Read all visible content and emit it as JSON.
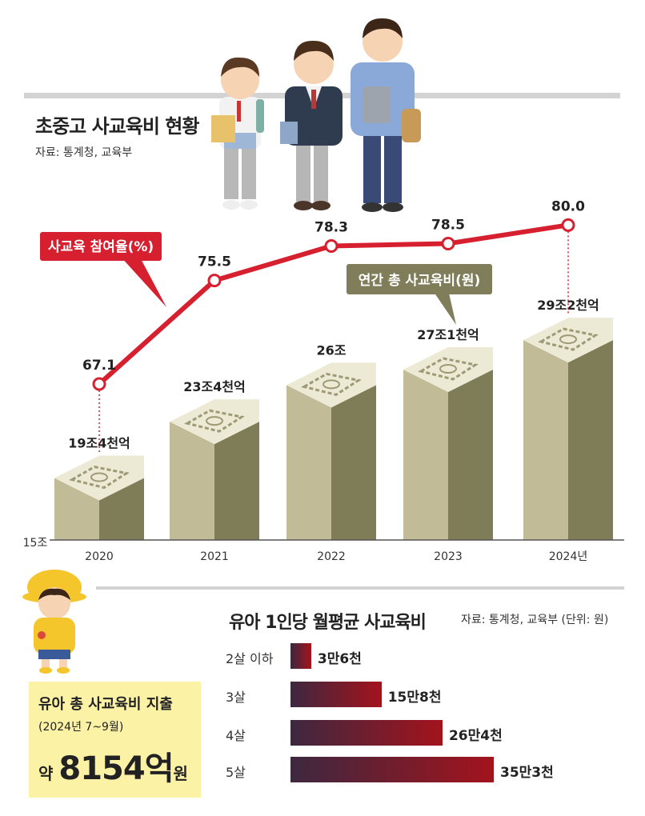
{
  "header": {
    "title": "초중고 사교육비 현황",
    "source": "자료: 통계청, 교육부"
  },
  "chart_data": [
    {
      "type": "bar",
      "title": "초중고 사교육비 현황",
      "categories": [
        "2020",
        "2021",
        "2022",
        "2023",
        "2024년"
      ],
      "series": [
        {
          "name": "연간 총 사교육비(원)",
          "values": [
            19.4,
            23.4,
            26.0,
            27.1,
            29.2
          ],
          "labels": [
            "19조4천억",
            "23조4천억",
            "26조",
            "27조1천억",
            "29조2천억"
          ]
        },
        {
          "name": "사교육 참여율(%)",
          "type": "line",
          "values": [
            67.1,
            75.5,
            78.3,
            78.5,
            80.0
          ],
          "labels": [
            "67.1",
            "75.5",
            "78.3",
            "78.5",
            "80.0"
          ]
        }
      ],
      "axis_start_label": "15조",
      "ylim": [
        15,
        30
      ],
      "ylim_secondary": [
        60,
        82
      ]
    },
    {
      "type": "bar",
      "orientation": "horizontal",
      "title": "유아 1인당 월평균 사교육비",
      "source": "자료: 통계청, 교육부 (단위: 원)",
      "categories": [
        "2살 이하",
        "3살",
        "4살",
        "5살"
      ],
      "values": [
        36000,
        158000,
        264000,
        353000
      ],
      "labels": [
        "3만6천",
        "15만8천",
        "26만4천",
        "35만3천"
      ]
    }
  ],
  "summary": {
    "title": "유아 총 사교육비 지출",
    "period": "(2024년 7~9월)",
    "prefix": "약 ",
    "amount": "8154억",
    "unit": "원"
  },
  "colors": {
    "line": "#d7202f",
    "callout_line": "#d7202f",
    "callout_bars": "#7f7d5a",
    "bar_front": "#c1bb98",
    "bar_side": "#7f7c58",
    "bar_top": "#ecead4",
    "infant_bar_start": "#3d2840",
    "infant_bar_end": "#a3131c",
    "summary_bg": "#fbf2a5"
  },
  "icons": [
    "students-illustration",
    "kindergartener-illustration",
    "banknote-stack-icon"
  ]
}
